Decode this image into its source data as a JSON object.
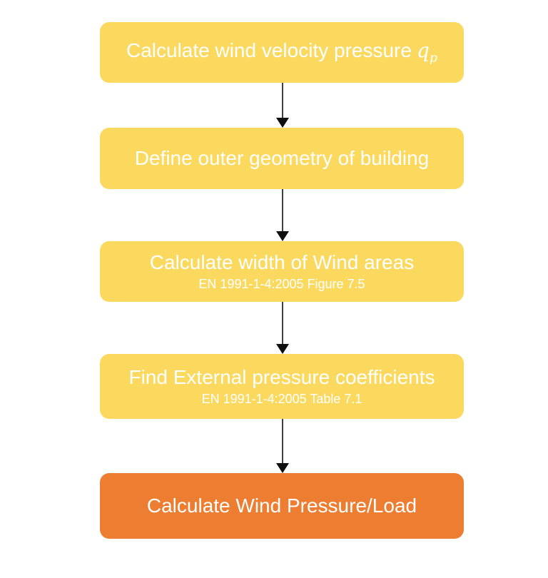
{
  "flowchart": {
    "steps": [
      {
        "title": "Calculate wind velocity pressure",
        "math_symbol": "q",
        "math_subscript": "p"
      },
      {
        "title": "Define outer geometry of building"
      },
      {
        "title": "Calculate width of Wind areas",
        "subtitle": "EN 1991-1-4:2005 Figure 7.5"
      },
      {
        "title": "Find External pressure coefficients",
        "subtitle": "EN 1991-1-4:2005 Table 7.1"
      },
      {
        "title": "Calculate Wind Pressure/Load"
      }
    ],
    "colors": {
      "step_fill": "#FBD95E",
      "final_step_fill": "#ED7D31",
      "text": "#FFFFFF",
      "arrow": "#000000",
      "background": "#FFFFFF"
    }
  }
}
